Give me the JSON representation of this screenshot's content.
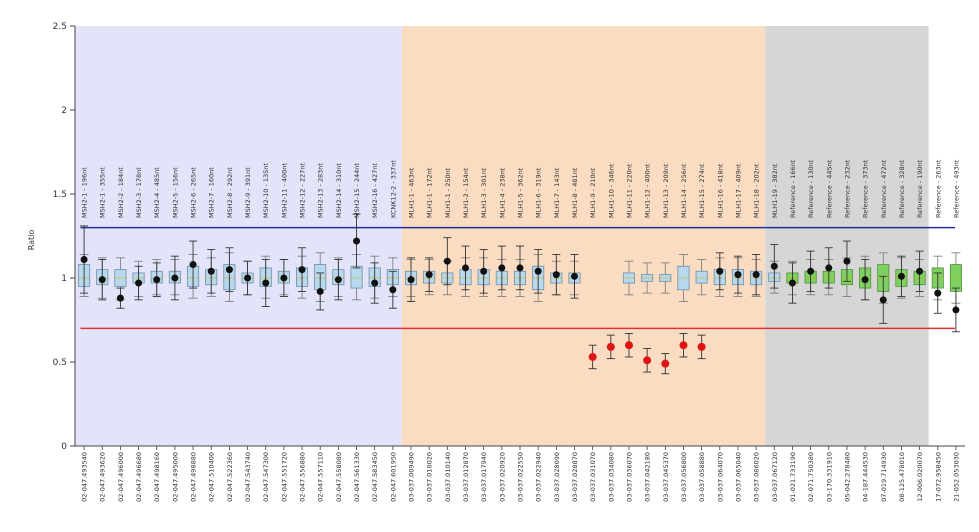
{
  "chart_data": {
    "type": "box",
    "ylabel": "Ratio",
    "ylim": [
      0,
      2.5
    ],
    "yticks": [
      "0",
      "0.5",
      "1",
      "1.5",
      "2",
      "2.5"
    ],
    "threshold_lines": [
      {
        "value": 1.3,
        "color": "#1f2f9c"
      },
      {
        "value": 0.7,
        "color": "#e03030"
      }
    ],
    "regions": [
      {
        "from": 0,
        "to": 18,
        "color": "#e3e3f9"
      },
      {
        "from": 18,
        "to": 38,
        "color": "#f9dcc2"
      },
      {
        "from": 38,
        "to": 47,
        "color": "#d6d6d6"
      }
    ],
    "probes": [
      "MSH2-1 - 196nt",
      "MSH2-1 - 355nt",
      "MSH2-2 - 184nt",
      "MSH2-3 - 178nt",
      "MSH2-4 - 485nt",
      "MSH2-5 - 156nt",
      "MSH2-6 - 265nt",
      "MSH2-7 - 160nt",
      "MSH2-8 - 292nt",
      "MSH2-9 - 391nt",
      "MSH2-10 - 135nt",
      "MSH2-11 - 400nt",
      "MSH2-12 - 227nt",
      "MSH2-13 - 283nt",
      "MSH2-14 - 310nt",
      "MSH2-15 - 244nt",
      "MSH2-16 - 427nt",
      "KCNK12-2 - 337nt",
      "MLH1-1 - 463nt",
      "MLH1-1 - 172nt",
      "MLH1-1 - 250nt",
      "MLH1-2 - 154nt",
      "MLH1-3 - 301nt",
      "MLH1-4 - 238nt",
      "MLH1-5 - 362nt",
      "MLH1-6 - 319nt",
      "MLH1-7 - 143nt",
      "MLH1-8 - 481nt",
      "MLH1-9 - 210nt",
      "MLH1-10 - 346nt",
      "MLH1-11 - 220nt",
      "MLH1-12 - 400nt",
      "MLH1-13 - 209nt",
      "MLH1-14 - 256nt",
      "MLH1-15 - 274nt",
      "MLH1-16 - 418nt",
      "MLH1-17 - 409nt",
      "MLH1-18 - 202nt",
      "MLH1-19 - 382nt",
      "Reference - 166nt",
      "Reference - 130nt",
      "Reference - 445nt",
      "Reference - 232nt",
      "Reference - 373nt",
      "Reference - 472nt",
      "Reference - 328nt",
      "Reference - 190nt",
      "Reference - 263nt",
      "Reference - 493nt"
    ],
    "positions": [
      "02-047.493540",
      "02-047.493620",
      "02-047.496000",
      "02-047.496680",
      "02-047.498160",
      "02-047.495000",
      "02-047.498880",
      "02-047.510400",
      "02-047.522360",
      "02-047.543740",
      "02-047.547300",
      "02-047.551720",
      "02-047.556880",
      "02-047.557110",
      "02-047.558080",
      "02-047.561330",
      "02-047.583450",
      "02-047.601950",
      "03-037.009490",
      "03-037.010020",
      "03-037.010140",
      "03-037.012870",
      "03-037.017940",
      "03-037.020920",
      "03-037.022550",
      "03-037.022940",
      "03-037.028090",
      "03-037.028870",
      "03-037.031070",
      "03-037.034080",
      "03-037.036070",
      "03-037.042180",
      "03-037.045370",
      "03-037.056800",
      "03-037.058880",
      "03-037.064070",
      "03-037.065040",
      "03-037.086020",
      "03-037.067120",
      "01-021.733190",
      "02-071.750380",
      "03-170.331910",
      "05-042.278480",
      "04-187.444530",
      "07-019.714930",
      "08-125.478010",
      "12-006.020070",
      "17-072.958450",
      "21-052.053030"
    ],
    "box_color": [
      "blue",
      "blue",
      "blue",
      "blue",
      "blue",
      "blue",
      "blue",
      "blue",
      "blue",
      "blue",
      "blue",
      "blue",
      "blue",
      "blue",
      "blue",
      "blue",
      "blue",
      "blue",
      "blue",
      "blue",
      "blue",
      "blue",
      "blue",
      "blue",
      "blue",
      "blue",
      "blue",
      "blue",
      "none",
      "none",
      "blue",
      "blue",
      "blue",
      "blue",
      "blue",
      "blue",
      "blue",
      "blue",
      "blue",
      "green",
      "green",
      "green",
      "green",
      "green",
      "green",
      "green",
      "green",
      "green",
      "green"
    ],
    "box_q1": [
      0.95,
      0.96,
      0.95,
      0.97,
      0.97,
      0.97,
      0.95,
      0.96,
      0.93,
      0.97,
      0.95,
      0.97,
      0.95,
      0.93,
      0.96,
      0.94,
      0.95,
      0.96,
      0.96,
      0.97,
      0.97,
      0.96,
      0.96,
      0.96,
      0.96,
      0.93,
      0.97,
      0.97,
      0,
      0,
      0.97,
      0.98,
      0.98,
      0.93,
      0.97,
      0.96,
      0.96,
      0.96,
      0.98,
      0.97,
      0.97,
      0.97,
      0.96,
      0.94,
      0.92,
      0.95,
      0.96,
      0.94,
      0.92
    ],
    "box_q3": [
      1.08,
      1.05,
      1.05,
      1.03,
      1.04,
      1.04,
      1.07,
      1.05,
      1.08,
      1.03,
      1.06,
      1.04,
      1.06,
      1.08,
      1.05,
      1.07,
      1.06,
      1.05,
      1.04,
      1.04,
      1.03,
      1.05,
      1.05,
      1.04,
      1.04,
      1.07,
      1.03,
      1.03,
      0,
      0,
      1.03,
      1.02,
      1.02,
      1.07,
      1.04,
      1.05,
      1.05,
      1.04,
      1.03,
      1.03,
      1.04,
      1.04,
      1.05,
      1.06,
      1.08,
      1.05,
      1.04,
      1.06,
      1.08
    ],
    "whisker_low": [
      0.89,
      0.88,
      0.87,
      0.89,
      0.9,
      0.9,
      0.88,
      0.89,
      0.86,
      0.9,
      0.88,
      0.9,
      0.88,
      0.86,
      0.89,
      0.87,
      0.88,
      0.89,
      0.89,
      0.9,
      0.9,
      0.89,
      0.89,
      0.89,
      0.89,
      0.86,
      0.9,
      0.9,
      0,
      0,
      0.9,
      0.91,
      0.91,
      0.86,
      0.9,
      0.89,
      0.89,
      0.89,
      0.91,
      0.9,
      0.9,
      0.9,
      0.89,
      0.87,
      0.85,
      0.88,
      0.89,
      0.87,
      0.85
    ],
    "whisker_high": [
      1.14,
      1.12,
      1.12,
      1.1,
      1.11,
      1.11,
      1.14,
      1.12,
      1.15,
      1.1,
      1.13,
      1.11,
      1.13,
      1.15,
      1.12,
      1.14,
      1.13,
      1.12,
      1.11,
      1.11,
      1.1,
      1.12,
      1.12,
      1.11,
      1.11,
      1.14,
      1.1,
      1.1,
      0,
      0,
      1.1,
      1.09,
      1.09,
      1.14,
      1.11,
      1.12,
      1.12,
      1.11,
      1.1,
      1.1,
      1.11,
      1.11,
      1.12,
      1.13,
      1.15,
      1.12,
      1.11,
      1.13,
      1.15
    ],
    "sample_values": [
      1.11,
      0.99,
      0.88,
      0.97,
      0.99,
      1.0,
      1.08,
      1.04,
      1.05,
      1.0,
      0.97,
      1.0,
      1.05,
      0.92,
      0.99,
      1.22,
      0.97,
      0.93,
      0.99,
      1.02,
      1.1,
      1.06,
      1.04,
      1.06,
      1.06,
      1.04,
      1.02,
      1.01,
      0.53,
      0.59,
      0.6,
      0.51,
      0.49,
      0.6,
      0.59,
      1.04,
      1.02,
      1.02,
      1.07,
      0.97,
      1.04,
      1.06,
      1.1,
      0.99,
      0.87,
      1.01,
      1.04,
      0.91,
      0.81
    ],
    "sample_error": [
      0.2,
      0.12,
      0.06,
      0.1,
      0.1,
      0.13,
      0.14,
      0.13,
      0.13,
      0.1,
      0.14,
      0.11,
      0.13,
      0.11,
      0.12,
      0.16,
      0.12,
      0.11,
      0.13,
      0.1,
      0.14,
      0.13,
      0.13,
      0.13,
      0.13,
      0.13,
      0.12,
      0.13,
      0.07,
      0.07,
      0.07,
      0.07,
      0.06,
      0.07,
      0.07,
      0.11,
      0.11,
      0.12,
      0.13,
      0.12,
      0.12,
      0.12,
      0.12,
      0.12,
      0.14,
      0.12,
      0.12,
      0.12,
      0.13
    ],
    "sample_marker": [
      "black",
      "black",
      "black",
      "black",
      "black",
      "black",
      "black",
      "black",
      "black",
      "black",
      "black",
      "black",
      "black",
      "black",
      "black",
      "black",
      "black",
      "black",
      "black",
      "black",
      "black",
      "black",
      "black",
      "black",
      "black",
      "black",
      "black",
      "black",
      "red",
      "red",
      "red",
      "red",
      "red",
      "red",
      "red",
      "black",
      "black",
      "black",
      "black",
      "black",
      "black",
      "black",
      "black",
      "black",
      "black",
      "black",
      "black",
      "black",
      "black"
    ],
    "grid": false
  }
}
